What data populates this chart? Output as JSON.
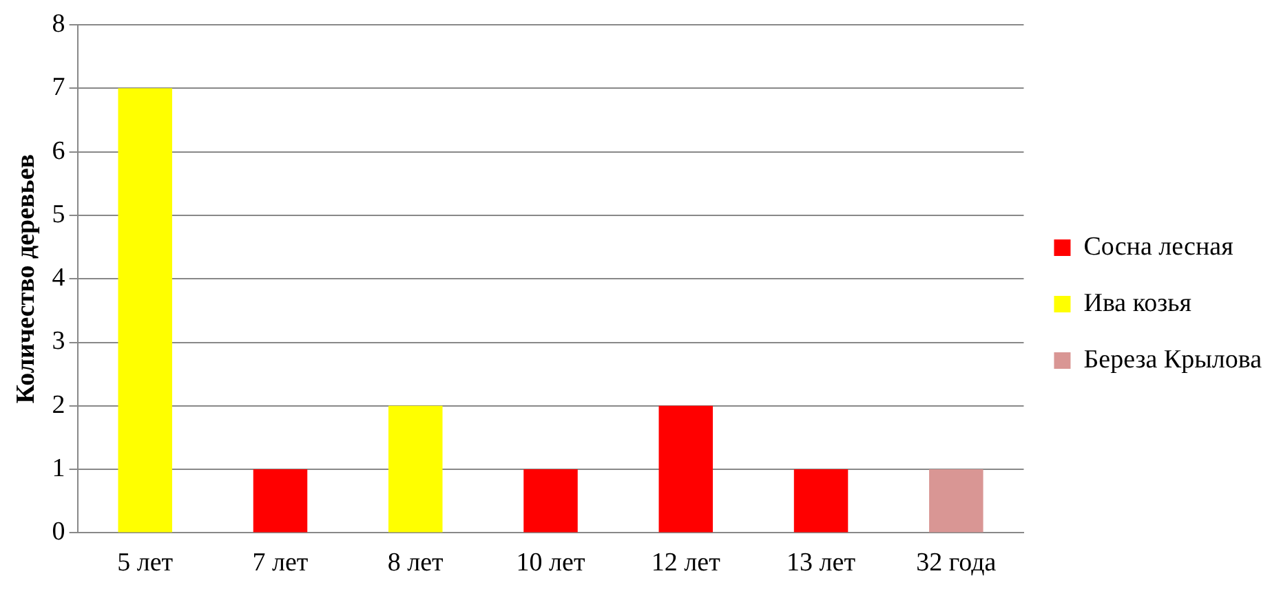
{
  "chart_data": {
    "type": "bar",
    "ylabel": "Количество деревьев",
    "categories": [
      "5 лет",
      "7 лет",
      "8 лет",
      "10 лет",
      "12 лет",
      "13 лет",
      "32 года"
    ],
    "series": [
      {
        "name": "Сосна лесная",
        "color": "#ff0000",
        "values": [
          null,
          1,
          null,
          1,
          2,
          1,
          null
        ]
      },
      {
        "name": "Ива козья",
        "color": "#ffff00",
        "values": [
          7,
          null,
          2,
          null,
          null,
          null,
          null
        ]
      },
      {
        "name": "Береза Крылова",
        "color": "#d99694",
        "values": [
          null,
          null,
          null,
          null,
          null,
          null,
          1
        ]
      }
    ],
    "ylim": [
      0,
      8
    ],
    "yticks": [
      0,
      1,
      2,
      3,
      4,
      5,
      6,
      7,
      8
    ],
    "grid": "y",
    "legend": "right"
  }
}
